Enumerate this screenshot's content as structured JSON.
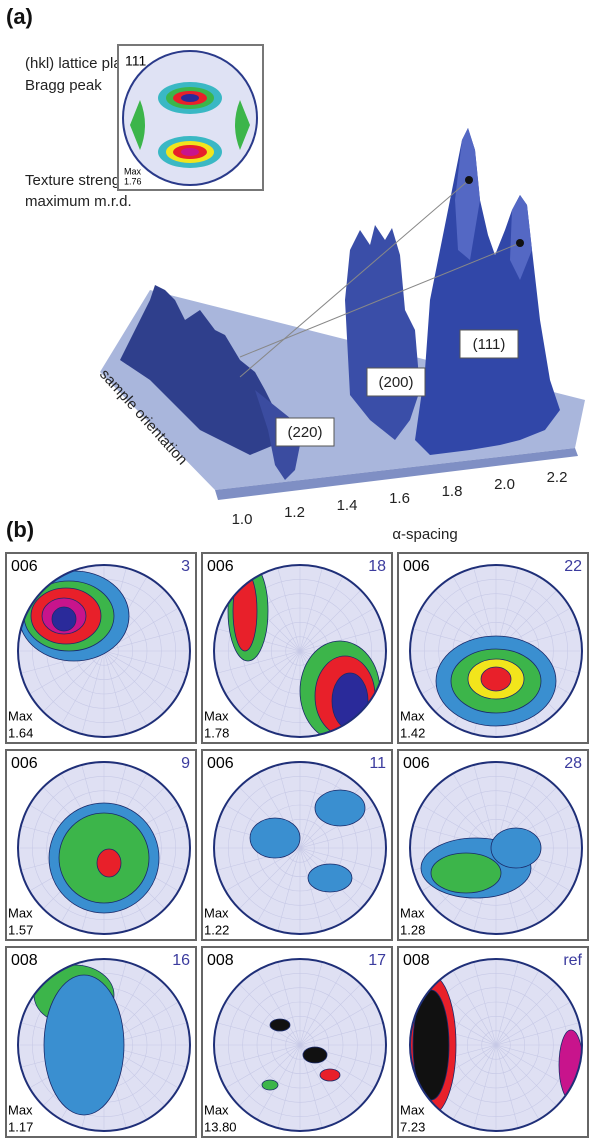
{
  "panel_a": {
    "label": "(a)",
    "annotations": [
      "(hkl) lattice plane=",
      "Bragg peak",
      "Texture strength:",
      "maximum m.r.d."
    ],
    "inset": {
      "hkl": "111",
      "max_label": "Max",
      "max_value": "1.76"
    },
    "peaks": [
      "(111)",
      "(200)",
      "(220)"
    ],
    "x_ticks": [
      "1.0",
      "1.2",
      "1.4",
      "1.6",
      "1.8",
      "2.0",
      "2.2"
    ],
    "x_axis_title": "α-spacing",
    "depth_axis_title": "sample orientation"
  },
  "panel_b": {
    "label": "(b)",
    "figures": [
      {
        "hkl": "006",
        "id": "3",
        "max_label": "Max",
        "max_value": "1.64"
      },
      {
        "hkl": "006",
        "id": "18",
        "max_label": "Max",
        "max_value": "1.78"
      },
      {
        "hkl": "006",
        "id": "22",
        "max_label": "Max",
        "max_value": "1.42"
      },
      {
        "hkl": "006",
        "id": "9",
        "max_label": "Max",
        "max_value": "1.57"
      },
      {
        "hkl": "006",
        "id": "11",
        "max_label": "Max",
        "max_value": "1.22"
      },
      {
        "hkl": "006",
        "id": "28",
        "max_label": "Max",
        "max_value": "1.28"
      },
      {
        "hkl": "008",
        "id": "16",
        "max_label": "Max",
        "max_value": "1.17"
      },
      {
        "hkl": "008",
        "id": "17",
        "max_label": "Max",
        "max_value": "13.80"
      },
      {
        "hkl": "008",
        "id": "ref",
        "max_label": "Max",
        "max_value": "7.23"
      }
    ]
  }
}
